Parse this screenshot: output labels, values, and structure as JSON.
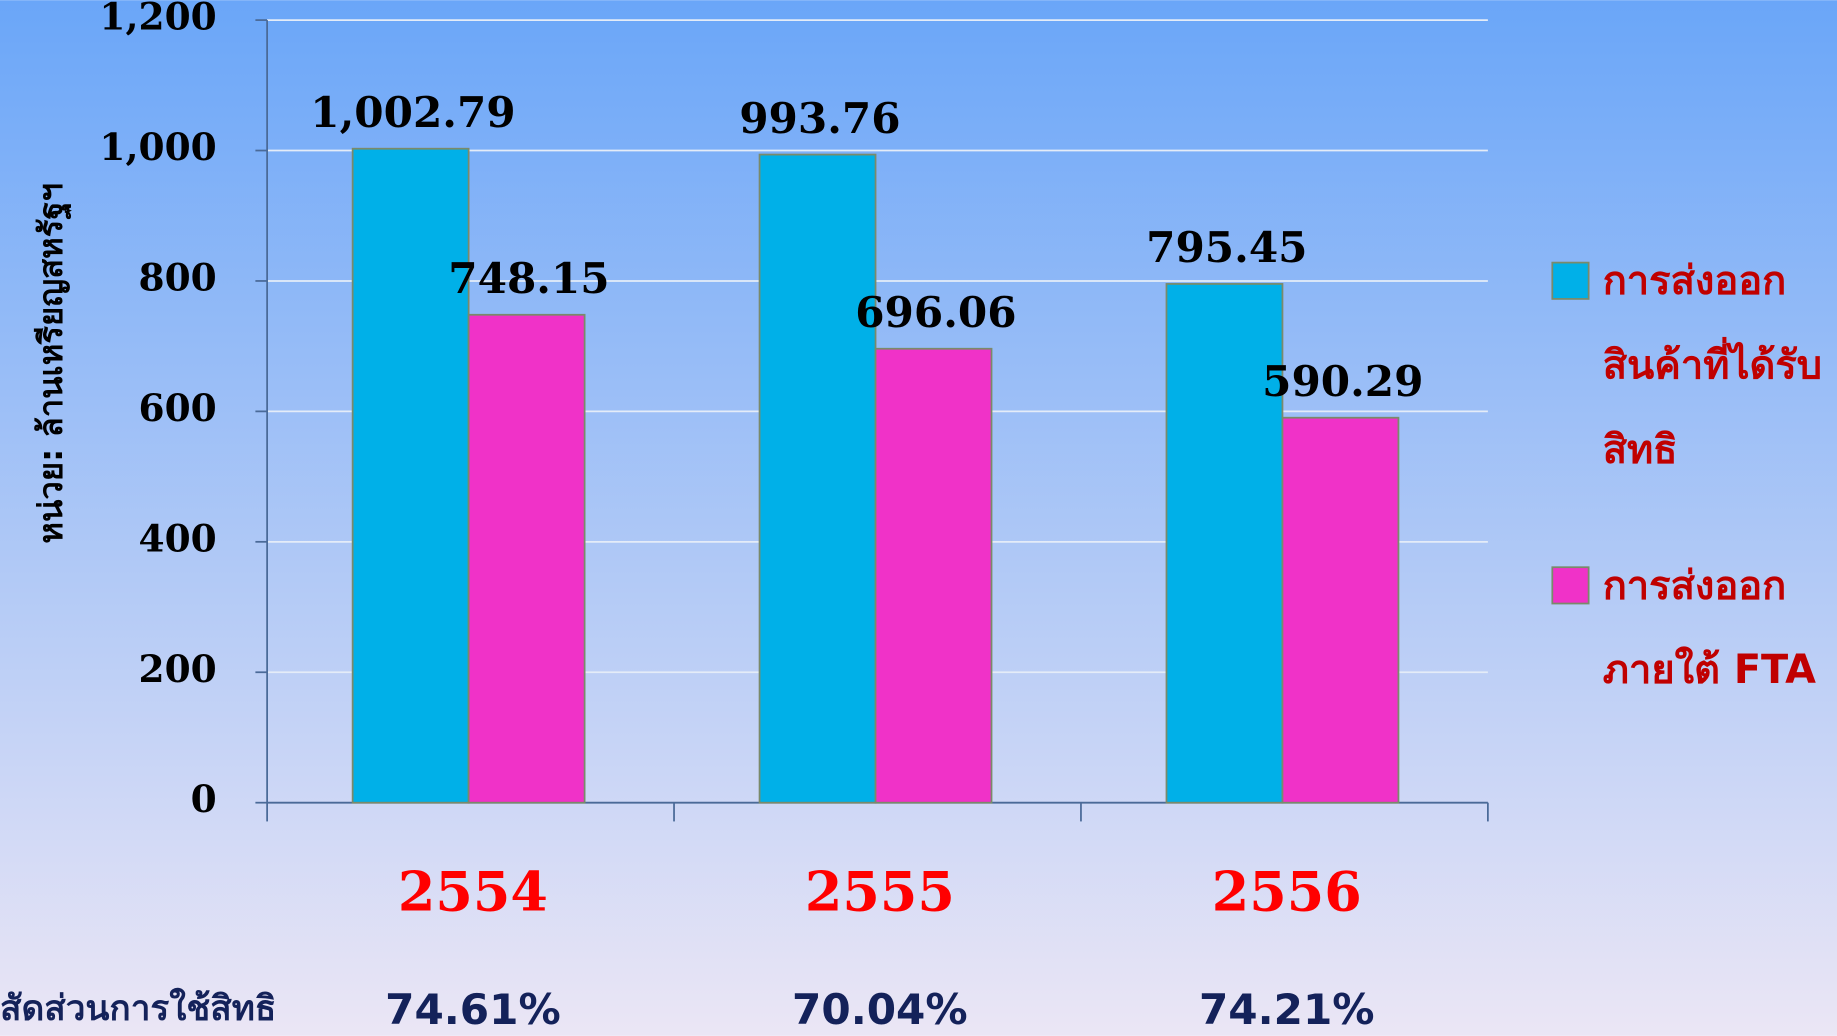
{
  "chart_data": {
    "type": "bar",
    "y_axis_label": "หน่วย: ล้านเหรียญสหรัฐฯ",
    "categories": [
      "2554",
      "2555",
      "2556"
    ],
    "series": [
      {
        "name": "การส่งออกสินค้าที่ได้รับสิทธิ",
        "color": "#00b0e8",
        "values": [
          1002.79,
          993.76,
          795.45
        ],
        "value_labels": [
          "1,002.79",
          "993.76",
          "795.45"
        ]
      },
      {
        "name": "การส่งออกภายใต้ FTA",
        "color": "#f032c8",
        "values": [
          748.15,
          696.06,
          590.29
        ]
      }
    ],
    "ylim": [
      0,
      1200
    ],
    "yticks": [
      0,
      200,
      400,
      600,
      800,
      {
        "value": 1000,
        "label": "1,000"
      },
      {
        "value": 1200,
        "label": "1,200"
      }
    ],
    "grid": true,
    "legend": "right",
    "utilization": {
      "label": "สัดส่วนการใช้สิทธิ",
      "values": [
        "74.61%",
        "70.04%",
        "74.21%"
      ]
    }
  }
}
